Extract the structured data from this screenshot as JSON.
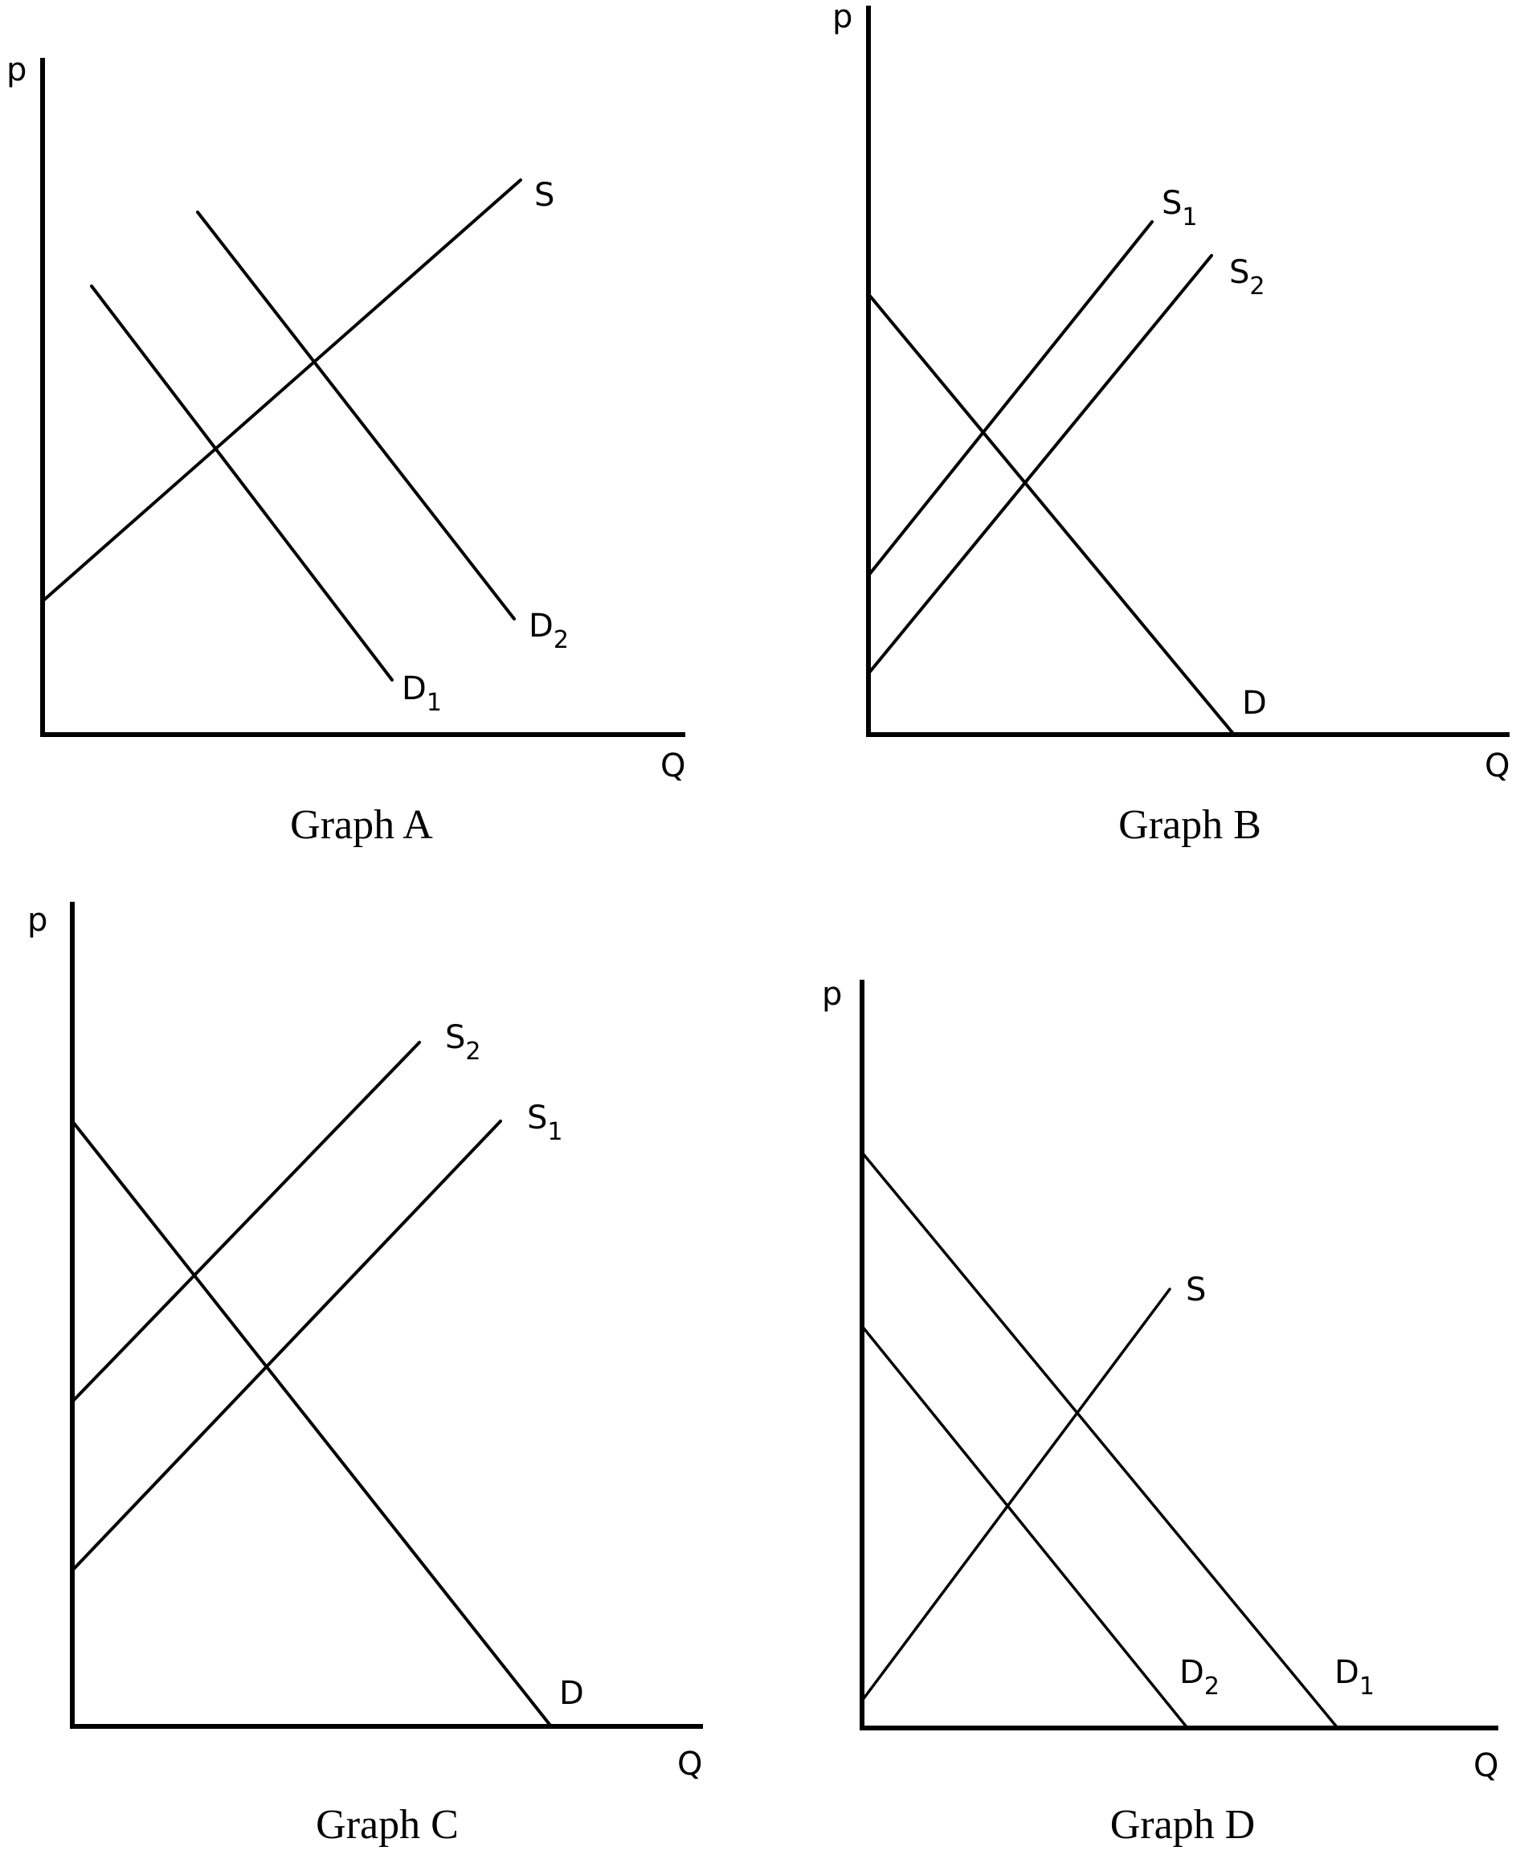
{
  "graphs": [
    {
      "caption": "Graph A",
      "y_axis_label": "p",
      "x_axis_label": "Q",
      "curves": [
        {
          "letter": "S",
          "sub": ""
        },
        {
          "letter": "D",
          "sub": "1"
        },
        {
          "letter": "D",
          "sub": "2"
        }
      ]
    },
    {
      "caption": "Graph B",
      "y_axis_label": "p",
      "x_axis_label": "Q",
      "curves": [
        {
          "letter": "S",
          "sub": "1"
        },
        {
          "letter": "S",
          "sub": "2"
        },
        {
          "letter": "D",
          "sub": ""
        }
      ]
    },
    {
      "caption": "Graph C",
      "y_axis_label": "p",
      "x_axis_label": "Q",
      "curves": [
        {
          "letter": "S",
          "sub": "2"
        },
        {
          "letter": "S",
          "sub": "1"
        },
        {
          "letter": "D",
          "sub": ""
        }
      ]
    },
    {
      "caption": "Graph D",
      "y_axis_label": "p",
      "x_axis_label": "Q",
      "curves": [
        {
          "letter": "S",
          "sub": ""
        },
        {
          "letter": "D",
          "sub": "2"
        },
        {
          "letter": "D",
          "sub": "1"
        }
      ]
    }
  ]
}
